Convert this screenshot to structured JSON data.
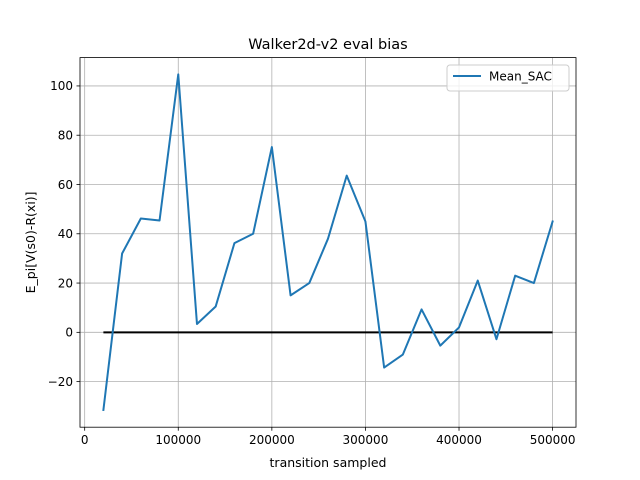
{
  "chart_data": {
    "type": "line",
    "title": "Walker2d-v2 eval bias",
    "xlabel": "transition sampled",
    "ylabel": "E_pi[V(s0)-R(xi)]",
    "xlim": [
      -5000,
      525000
    ],
    "ylim": [
      -38.5,
      111.5
    ],
    "xticks": [
      0,
      100000,
      200000,
      300000,
      400000,
      500000
    ],
    "xtick_labels": [
      "0",
      "100000",
      "200000",
      "300000",
      "400000",
      "500000"
    ],
    "yticks": [
      -20,
      0,
      20,
      40,
      60,
      80,
      100
    ],
    "ytick_labels": [
      "−20",
      "0",
      "20",
      "40",
      "60",
      "80",
      "100"
    ],
    "grid": true,
    "legend_position": "top-right",
    "series": [
      {
        "name": "Mean_SAC",
        "color": "#1f77b4",
        "x": [
          20000,
          40000,
          60000,
          80000,
          100000,
          120000,
          140000,
          160000,
          180000,
          200000,
          220000,
          240000,
          260000,
          280000,
          300000,
          320000,
          340000,
          360000,
          380000,
          400000,
          420000,
          440000,
          460000,
          480000,
          500000
        ],
        "y": [
          -31.5,
          32,
          46.2,
          45.4,
          104.7,
          3.4,
          10.5,
          36.2,
          40,
          75.2,
          15,
          20,
          38,
          63.6,
          45,
          -14.3,
          -9,
          9.3,
          -5.4,
          2,
          21,
          -2.8,
          23,
          20,
          45
        ]
      }
    ],
    "reference_line": {
      "y": 0,
      "x": [
        20000,
        500000
      ],
      "color": "#000000"
    }
  }
}
